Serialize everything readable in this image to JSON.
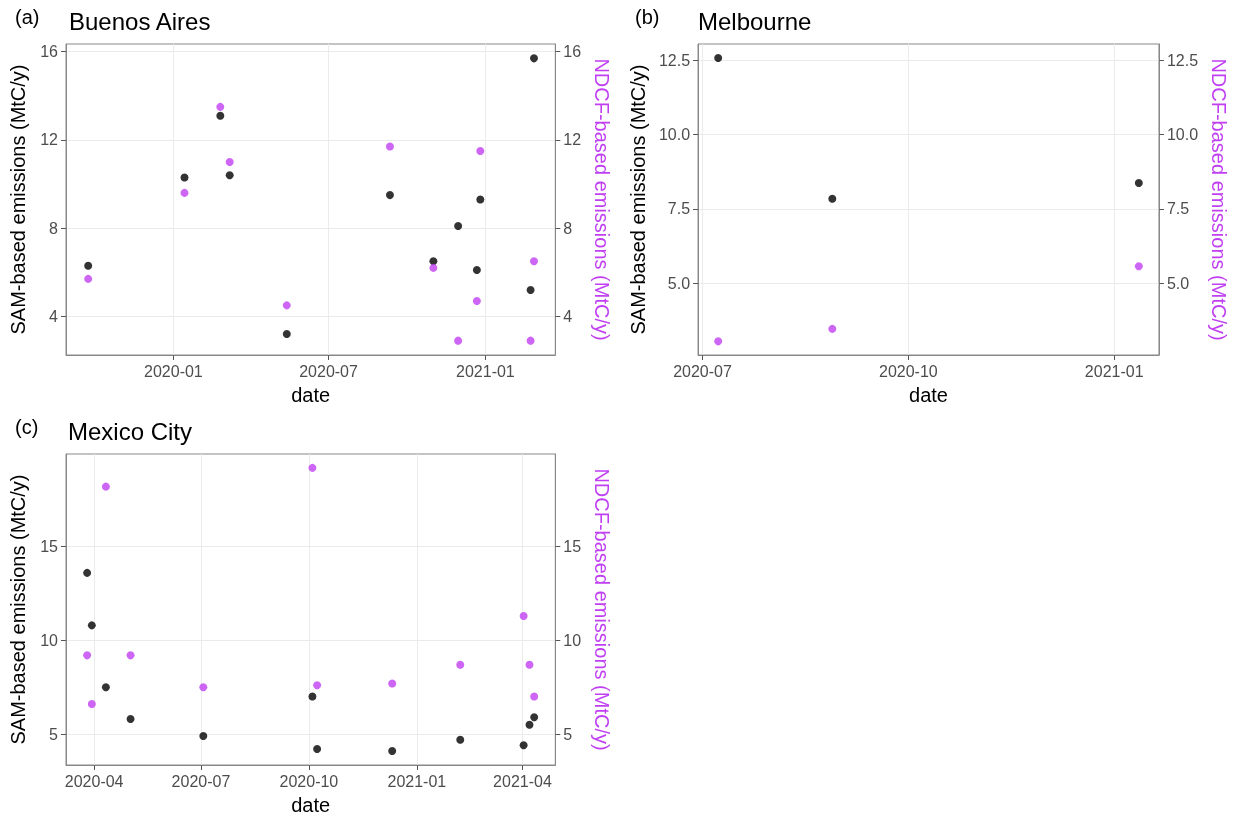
{
  "chart_data": [
    {
      "type": "scatter",
      "title": "Buenos Aires",
      "annotations": [
        "(a)"
      ],
      "xlabel": "date",
      "ylabel": "SAM-based emissions (MtC/y)",
      "y2label": "NDCF-based emissions (MtC/y)",
      "x": [
        "2019-09-23",
        "2020-01-14",
        "2020-02-25",
        "2020-03-07",
        "2020-05-13",
        "2020-09-11",
        "2020-11-01",
        "2020-11-30",
        "2020-12-22",
        "2020-12-26",
        "2021-02-23",
        "2021-02-27"
      ],
      "series": [
        {
          "color": "#000000",
          "values": [
            6.3,
            10.3,
            13.1,
            10.4,
            3.2,
            9.5,
            6.5,
            8.1,
            6.1,
            9.3,
            5.2,
            15.7
          ]
        },
        {
          "color": "#c03ff2",
          "axis": "y2",
          "values": [
            5.7,
            9.6,
            13.5,
            11.0,
            4.5,
            11.7,
            6.2,
            2.9,
            4.7,
            11.5,
            2.9,
            6.5
          ]
        }
      ],
      "xlim": [
        "2019-08-28",
        "2021-03-24"
      ],
      "xticks": [
        "2020-01",
        "2020-07",
        "2021-01"
      ],
      "ylim": [
        2.25,
        16.35
      ],
      "yticks": [
        4,
        8,
        12,
        16
      ],
      "y2lim": [
        2.25,
        16.35
      ],
      "y2ticks": [
        4,
        8,
        12,
        16
      ],
      "grid": true,
      "marker": "circle"
    },
    {
      "type": "scatter",
      "title": "Melbourne",
      "annotations": [
        "(b)"
      ],
      "xlabel": "date",
      "ylabel": "SAM-based emissions (MtC/y)",
      "y2label": "NDCF-based emissions (MtC/y)",
      "x": [
        "2020-07-08",
        "2020-08-28",
        "2021-01-12"
      ],
      "series": [
        {
          "color": "#000000",
          "values": [
            12.58,
            7.84,
            8.37
          ]
        },
        {
          "color": "#c03ff2",
          "axis": "y2",
          "values": [
            3.04,
            3.46,
            5.57
          ]
        }
      ],
      "xlim": [
        "2020-06-29",
        "2021-01-21"
      ],
      "xticks": [
        "2020-07",
        "2020-10",
        "2021-01"
      ],
      "ylim": [
        2.58,
        13.05
      ],
      "yticks": [
        {
          "value": 5,
          "label": "5.0"
        },
        7.5,
        {
          "value": 10,
          "label": "10.0"
        },
        12.5
      ],
      "y2lim": [
        2.58,
        13.05
      ],
      "y2ticks": [
        {
          "value": 5,
          "label": "5.0"
        },
        7.5,
        {
          "value": 10,
          "label": "10.0"
        },
        12.5
      ],
      "grid": true,
      "marker": "circle"
    },
    {
      "type": "scatter",
      "title": "Mexico City",
      "annotations": [
        "(c)"
      ],
      "xlabel": "date",
      "ylabel": "SAM-based emissions (MtC/y)",
      "y2label": "NDCF-based emissions (MtC/y)",
      "x": [
        "2020-03-26",
        "2020-03-30",
        "2020-04-11",
        "2020-05-02",
        "2020-07-03",
        "2020-10-04",
        "2020-10-08",
        "2020-12-11",
        "2021-02-07",
        "2021-04-02",
        "2021-04-07",
        "2021-04-11"
      ],
      "series": [
        {
          "color": "#000000",
          "values": [
            13.6,
            10.8,
            7.5,
            5.8,
            4.9,
            7.0,
            4.2,
            4.1,
            4.7,
            4.4,
            5.5,
            5.9
          ]
        },
        {
          "color": "#c03ff2",
          "axis": "y2",
          "values": [
            9.2,
            6.6,
            18.2,
            9.2,
            7.5,
            19.2,
            7.6,
            7.7,
            8.7,
            11.3,
            8.7,
            7.0
          ]
        }
      ],
      "xlim": [
        "2020-03-08",
        "2021-04-29"
      ],
      "xticks": [
        "2020-04",
        "2020-07",
        "2020-10",
        "2021-01",
        "2021-04"
      ],
      "ylim": [
        3.35,
        19.94
      ],
      "yticks": [
        5,
        10,
        15
      ],
      "y2lim": [
        3.35,
        19.94
      ],
      "y2ticks": [
        5,
        10,
        15
      ],
      "grid": true,
      "marker": "circle"
    }
  ]
}
